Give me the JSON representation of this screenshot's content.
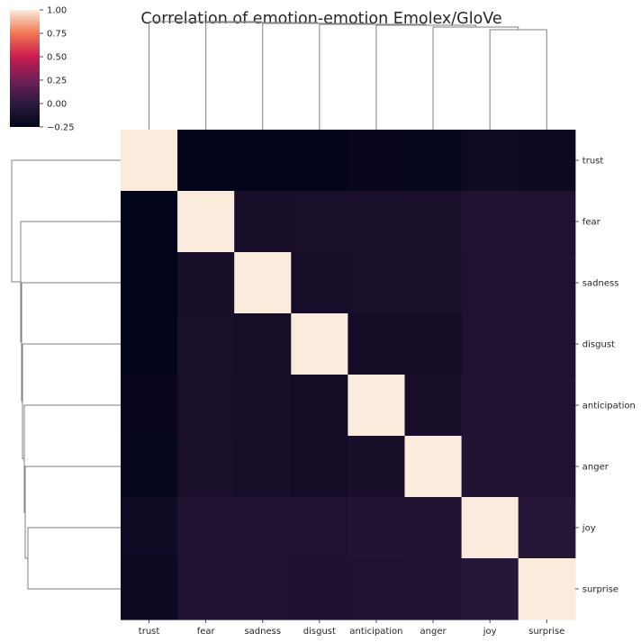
{
  "chart_data": {
    "type": "heatmap",
    "title": "Correlation of emotion-emotion Emolex/GloVe",
    "xlabel": "",
    "ylabel": "",
    "row_labels": [
      "trust",
      "fear",
      "sadness",
      "disgust",
      "anticipation",
      "anger",
      "joy",
      "surprise"
    ],
    "col_labels": [
      "trust",
      "fear",
      "sadness",
      "disgust",
      "anticipation",
      "anger",
      "joy",
      "surprise"
    ],
    "values": [
      [
        1.0,
        -0.25,
        -0.25,
        -0.25,
        -0.22,
        -0.23,
        -0.18,
        -0.2
      ],
      [
        -0.25,
        1.0,
        -0.14,
        -0.13,
        -0.13,
        -0.13,
        -0.08,
        -0.09
      ],
      [
        -0.25,
        -0.14,
        1.0,
        -0.15,
        -0.13,
        -0.13,
        -0.09,
        -0.09
      ],
      [
        -0.25,
        -0.13,
        -0.15,
        1.0,
        -0.16,
        -0.16,
        -0.09,
        -0.09
      ],
      [
        -0.22,
        -0.13,
        -0.14,
        -0.16,
        1.0,
        -0.14,
        -0.08,
        -0.09
      ],
      [
        -0.23,
        -0.13,
        -0.15,
        -0.16,
        -0.14,
        1.0,
        -0.08,
        -0.09
      ],
      [
        -0.18,
        -0.09,
        -0.09,
        -0.09,
        -0.08,
        -0.09,
        1.0,
        -0.04
      ],
      [
        -0.2,
        -0.09,
        -0.09,
        -0.1,
        -0.09,
        -0.09,
        -0.05,
        1.0
      ]
    ],
    "colorbar": {
      "vmin": -0.25,
      "vmax": 1.0,
      "ticks": [
        -0.25,
        0.0,
        0.25,
        0.5,
        0.75,
        1.0
      ],
      "tick_labels": [
        "−0.25",
        "0.00",
        "0.25",
        "0.50",
        "0.75",
        "1.00"
      ],
      "colormap": "rocket"
    },
    "dendrograms": [
      "top",
      "left"
    ],
    "grid": false
  }
}
